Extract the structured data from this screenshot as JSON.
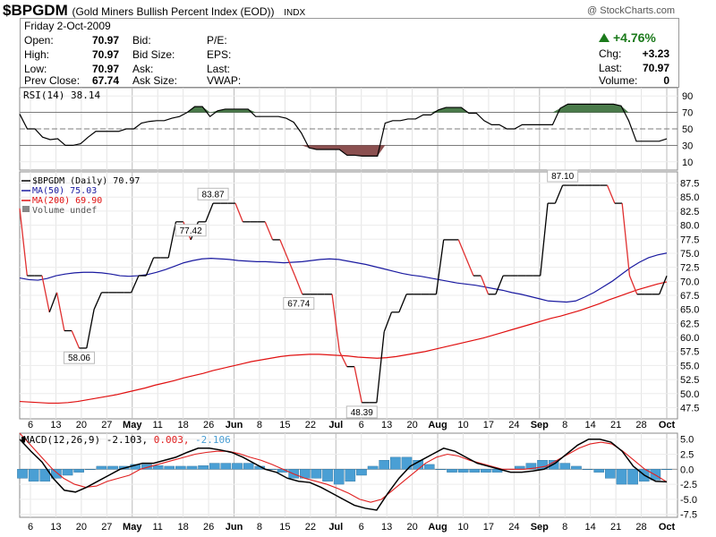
{
  "header": {
    "symbol": "$BPGDM",
    "name": "(Gold Miners Bullish Percent Index (EOD))",
    "exchange": "INDX",
    "copyright": "@ StockCharts.com"
  },
  "quote": {
    "date": "Friday  2-Oct-2009",
    "open_label": "Open:",
    "open": "70.97",
    "high_label": "High:",
    "high": "70.97",
    "low_label": "Low:",
    "low": "70.97",
    "prev_close_label": "Prev Close:",
    "prev_close": "67.74",
    "bid_label": "Bid:",
    "bid_size_label": "Bid Size:",
    "ask_label": "Ask:",
    "ask_size_label": "Ask Size:",
    "pe_label": "P/E:",
    "eps_label": "EPS:",
    "last_label_mid": "Last:",
    "vwap_label": "VWAP:",
    "change_pct": "+4.76%",
    "chg_label": "Chg:",
    "chg": "+3.23",
    "last_label": "Last:",
    "last": "70.97",
    "volume_label": "Volume:",
    "volume": "0"
  },
  "colors": {
    "price_up": "#000000",
    "price_down": "#e03030",
    "ma50": "#1a1aa0",
    "ma200": "#e01010",
    "rsi_overbought": "#4a7a4a",
    "rsi_oversold": "#8b5050",
    "macd_line": "#000000",
    "macd_signal": "#e02020",
    "macd_hist": "#4a9fd4"
  },
  "chart_data": [
    {
      "type": "line",
      "panel": "rsi",
      "legend": "RSI(14) 38.14",
      "ylim": [
        0,
        100
      ],
      "yticks": [
        10,
        30,
        50,
        70,
        90
      ],
      "reference_lines": [
        30,
        50,
        70
      ],
      "values": [
        68,
        50,
        50,
        40,
        37,
        38,
        30,
        30,
        32,
        40,
        47,
        47,
        47,
        47,
        50,
        50,
        57,
        59,
        60,
        60,
        63,
        65,
        70,
        77,
        77,
        65,
        72,
        74,
        74,
        74,
        74,
        65,
        65,
        65,
        65,
        63,
        58,
        45,
        27,
        25,
        25,
        25,
        25,
        18,
        18,
        17,
        17,
        17,
        57,
        60,
        60,
        62,
        62,
        67,
        67,
        73,
        76,
        76,
        76,
        69,
        69,
        60,
        55,
        55,
        50,
        50,
        55,
        55,
        55,
        55,
        55,
        75,
        80,
        80,
        80,
        80,
        80,
        80,
        80,
        78,
        60,
        35,
        35,
        35,
        35,
        38
      ]
    },
    {
      "type": "line",
      "panel": "price",
      "legend": [
        "$BPGDM (Daily) 70.97",
        "MA(50) 75.03",
        "MA(200) 69.90",
        "Volume undef"
      ],
      "ylim": [
        45.5,
        89.5
      ],
      "yticks": [
        47.5,
        50.0,
        52.5,
        55.0,
        57.5,
        60.0,
        62.5,
        65.0,
        67.5,
        70.0,
        72.5,
        75.0,
        77.5,
        80.0,
        82.5,
        85.0,
        87.5
      ],
      "series": [
        {
          "name": "$BPGDM",
          "values": [
            83.0,
            71.0,
            71.0,
            71.0,
            64.5,
            68.0,
            61.2,
            61.2,
            58.1,
            58.1,
            65.0,
            68.0,
            68.0,
            68.0,
            68.0,
            68.0,
            71.0,
            71.0,
            74.2,
            74.2,
            74.2,
            80.6,
            80.6,
            77.4,
            80.6,
            80.6,
            83.9,
            83.9,
            83.9,
            83.9,
            80.6,
            80.6,
            80.6,
            80.6,
            77.4,
            77.4,
            74.2,
            71.0,
            67.7,
            67.7,
            67.7,
            67.7,
            67.7,
            57.5,
            54.8,
            54.8,
            48.4,
            48.4,
            48.4,
            61.0,
            64.5,
            64.5,
            67.7,
            67.7,
            67.7,
            67.7,
            67.7,
            77.4,
            77.4,
            77.4,
            74.2,
            71.0,
            71.0,
            67.7,
            67.7,
            71.0,
            71.0,
            71.0,
            71.0,
            71.0,
            71.0,
            83.9,
            83.9,
            87.1,
            87.1,
            87.1,
            87.1,
            87.1,
            87.1,
            87.1,
            83.9,
            83.9,
            71.0,
            67.7,
            67.7,
            67.7,
            67.7,
            70.97
          ]
        },
        {
          "name": "MA(50)",
          "values": [
            70.6,
            70.3,
            70.2,
            70.5,
            71.0,
            71.3,
            71.5,
            71.6,
            71.6,
            71.5,
            71.3,
            71.0,
            70.9,
            71.0,
            71.2,
            71.6,
            72.1,
            72.7,
            73.3,
            73.7,
            74.0,
            74.1,
            74.0,
            73.9,
            73.7,
            73.6,
            73.5,
            73.5,
            73.4,
            73.3,
            73.4,
            73.5,
            73.7,
            73.9,
            74.0,
            73.9,
            73.6,
            73.3,
            73.0,
            72.6,
            72.2,
            71.8,
            71.4,
            71.1,
            70.9,
            70.6,
            70.3,
            70.0,
            69.7,
            69.5,
            69.3,
            69.0,
            68.7,
            68.4,
            68.0,
            67.7,
            67.3,
            66.9,
            66.5,
            66.4,
            66.3,
            66.5,
            67.2,
            68.0,
            69.0,
            70.0,
            71.2,
            72.4,
            73.4,
            74.2,
            74.7,
            75.03
          ]
        },
        {
          "name": "MA(200)",
          "values": [
            48.6,
            48.5,
            48.4,
            48.3,
            48.3,
            48.4,
            48.6,
            48.9,
            49.2,
            49.5,
            49.8,
            50.2,
            50.6,
            51.0,
            51.5,
            51.9,
            52.3,
            52.8,
            53.2,
            53.6,
            54.1,
            54.5,
            54.9,
            55.3,
            55.7,
            56.0,
            56.3,
            56.6,
            56.8,
            56.9,
            57.0,
            57.0,
            56.9,
            56.8,
            56.7,
            56.5,
            56.4,
            56.3,
            56.4,
            56.6,
            56.9,
            57.2,
            57.5,
            57.9,
            58.3,
            58.7,
            59.1,
            59.5,
            59.9,
            60.4,
            60.9,
            61.4,
            61.9,
            62.4,
            62.9,
            63.4,
            63.8,
            64.3,
            64.8,
            65.4,
            66.0,
            66.7,
            67.3,
            67.9,
            68.5,
            69.0,
            69.5,
            69.9
          ]
        }
      ]
    },
    {
      "type": "line",
      "panel": "macd",
      "legend": [
        "MACD(12,26,9) -2.103,",
        "0.003,",
        "-2.106"
      ],
      "ylim": [
        -8,
        6
      ],
      "yticks": [
        5.0,
        2.5,
        0.0,
        -2.5,
        -5.0,
        -7.5
      ],
      "series": [
        {
          "name": "MACD",
          "values": [
            5,
            3,
            1.2,
            -1.5,
            -3.5,
            -3.8,
            -3,
            -2,
            -1,
            0,
            0.5,
            1,
            1,
            1.5,
            2,
            2.8,
            3.5,
            3.5,
            3.2,
            2.8,
            2,
            1,
            0,
            -0.5,
            -1.5,
            -2,
            -2.2,
            -3,
            -4,
            -5,
            -6,
            -6.5,
            -6.8,
            -4,
            -1.5,
            0.5,
            1.5,
            2.5,
            3.5,
            3,
            2,
            1,
            0.5,
            0,
            -0.5,
            -0.5,
            -0.3,
            0,
            1,
            2.5,
            4,
            5,
            5,
            4.5,
            3,
            0.5,
            -1,
            -2,
            -2.1
          ]
        },
        {
          "name": "Signal",
          "values": [
            6,
            4,
            2,
            0,
            -1.5,
            -2.5,
            -3,
            -2.8,
            -2,
            -1.5,
            -1,
            0,
            0.5,
            1,
            1.5,
            2,
            2.5,
            2.8,
            3,
            3,
            2.6,
            2,
            1.5,
            0.8,
            0,
            -0.8,
            -1.5,
            -2,
            -2.5,
            -3.2,
            -4,
            -5,
            -5.5,
            -5,
            -3.5,
            -2,
            -0.5,
            1,
            2,
            2.5,
            2.2,
            1.5,
            1,
            0.5,
            0,
            0,
            0,
            0.2,
            0.5,
            1.5,
            2.5,
            3.5,
            4.2,
            4.5,
            4.2,
            3,
            1.5,
            0,
            -1,
            -2.106
          ]
        },
        {
          "name": "Histogram",
          "values": [
            -1.5,
            -2,
            -2,
            -1.5,
            -1,
            -0.5,
            0,
            0.5,
            0.5,
            0.5,
            0.8,
            0.8,
            0.6,
            0.5,
            0.5,
            0.5,
            0.6,
            1,
            1,
            1,
            1,
            0.5,
            0,
            -0.5,
            -1.5,
            -1.5,
            -1.5,
            -2,
            -2.5,
            -2,
            -1,
            0.5,
            1.5,
            2,
            2,
            1.5,
            0.8,
            0,
            -0.5,
            -0.5,
            -0.5,
            -0.5,
            -0.5,
            0,
            0.5,
            1,
            1.5,
            1.5,
            1,
            0.5,
            0,
            -0.5,
            -1.5,
            -2.5,
            -2.5,
            -2,
            -1.8,
            0.003
          ]
        }
      ]
    }
  ],
  "x_axis": {
    "ticks": [
      {
        "label": "6",
        "bold": false
      },
      {
        "label": "13",
        "bold": false
      },
      {
        "label": "20",
        "bold": false
      },
      {
        "label": "27",
        "bold": false
      },
      {
        "label": "May",
        "bold": true
      },
      {
        "label": "11",
        "bold": false
      },
      {
        "label": "18",
        "bold": false
      },
      {
        "label": "26",
        "bold": false
      },
      {
        "label": "Jun",
        "bold": true
      },
      {
        "label": "8",
        "bold": false
      },
      {
        "label": "15",
        "bold": false
      },
      {
        "label": "22",
        "bold": false
      },
      {
        "label": "Jul",
        "bold": true
      },
      {
        "label": "6",
        "bold": false
      },
      {
        "label": "13",
        "bold": false
      },
      {
        "label": "20",
        "bold": false
      },
      {
        "label": "Aug",
        "bold": true
      },
      {
        "label": "10",
        "bold": false
      },
      {
        "label": "17",
        "bold": false
      },
      {
        "label": "24",
        "bold": false
      },
      {
        "label": "Sep",
        "bold": true
      },
      {
        "label": "8",
        "bold": false
      },
      {
        "label": "14",
        "bold": false
      },
      {
        "label": "21",
        "bold": false
      },
      {
        "label": "28",
        "bold": false
      },
      {
        "label": "Oct",
        "bold": true
      }
    ]
  },
  "annotations": [
    {
      "text": "58.06",
      "value": 58.06
    },
    {
      "text": "83.87",
      "value": 83.87
    },
    {
      "text": "48.39",
      "value": 48.39
    },
    {
      "text": "77.42",
      "value": 77.42
    },
    {
      "text": "87.10",
      "value": 87.1
    },
    {
      "text": "67.74",
      "value": 67.74
    }
  ]
}
